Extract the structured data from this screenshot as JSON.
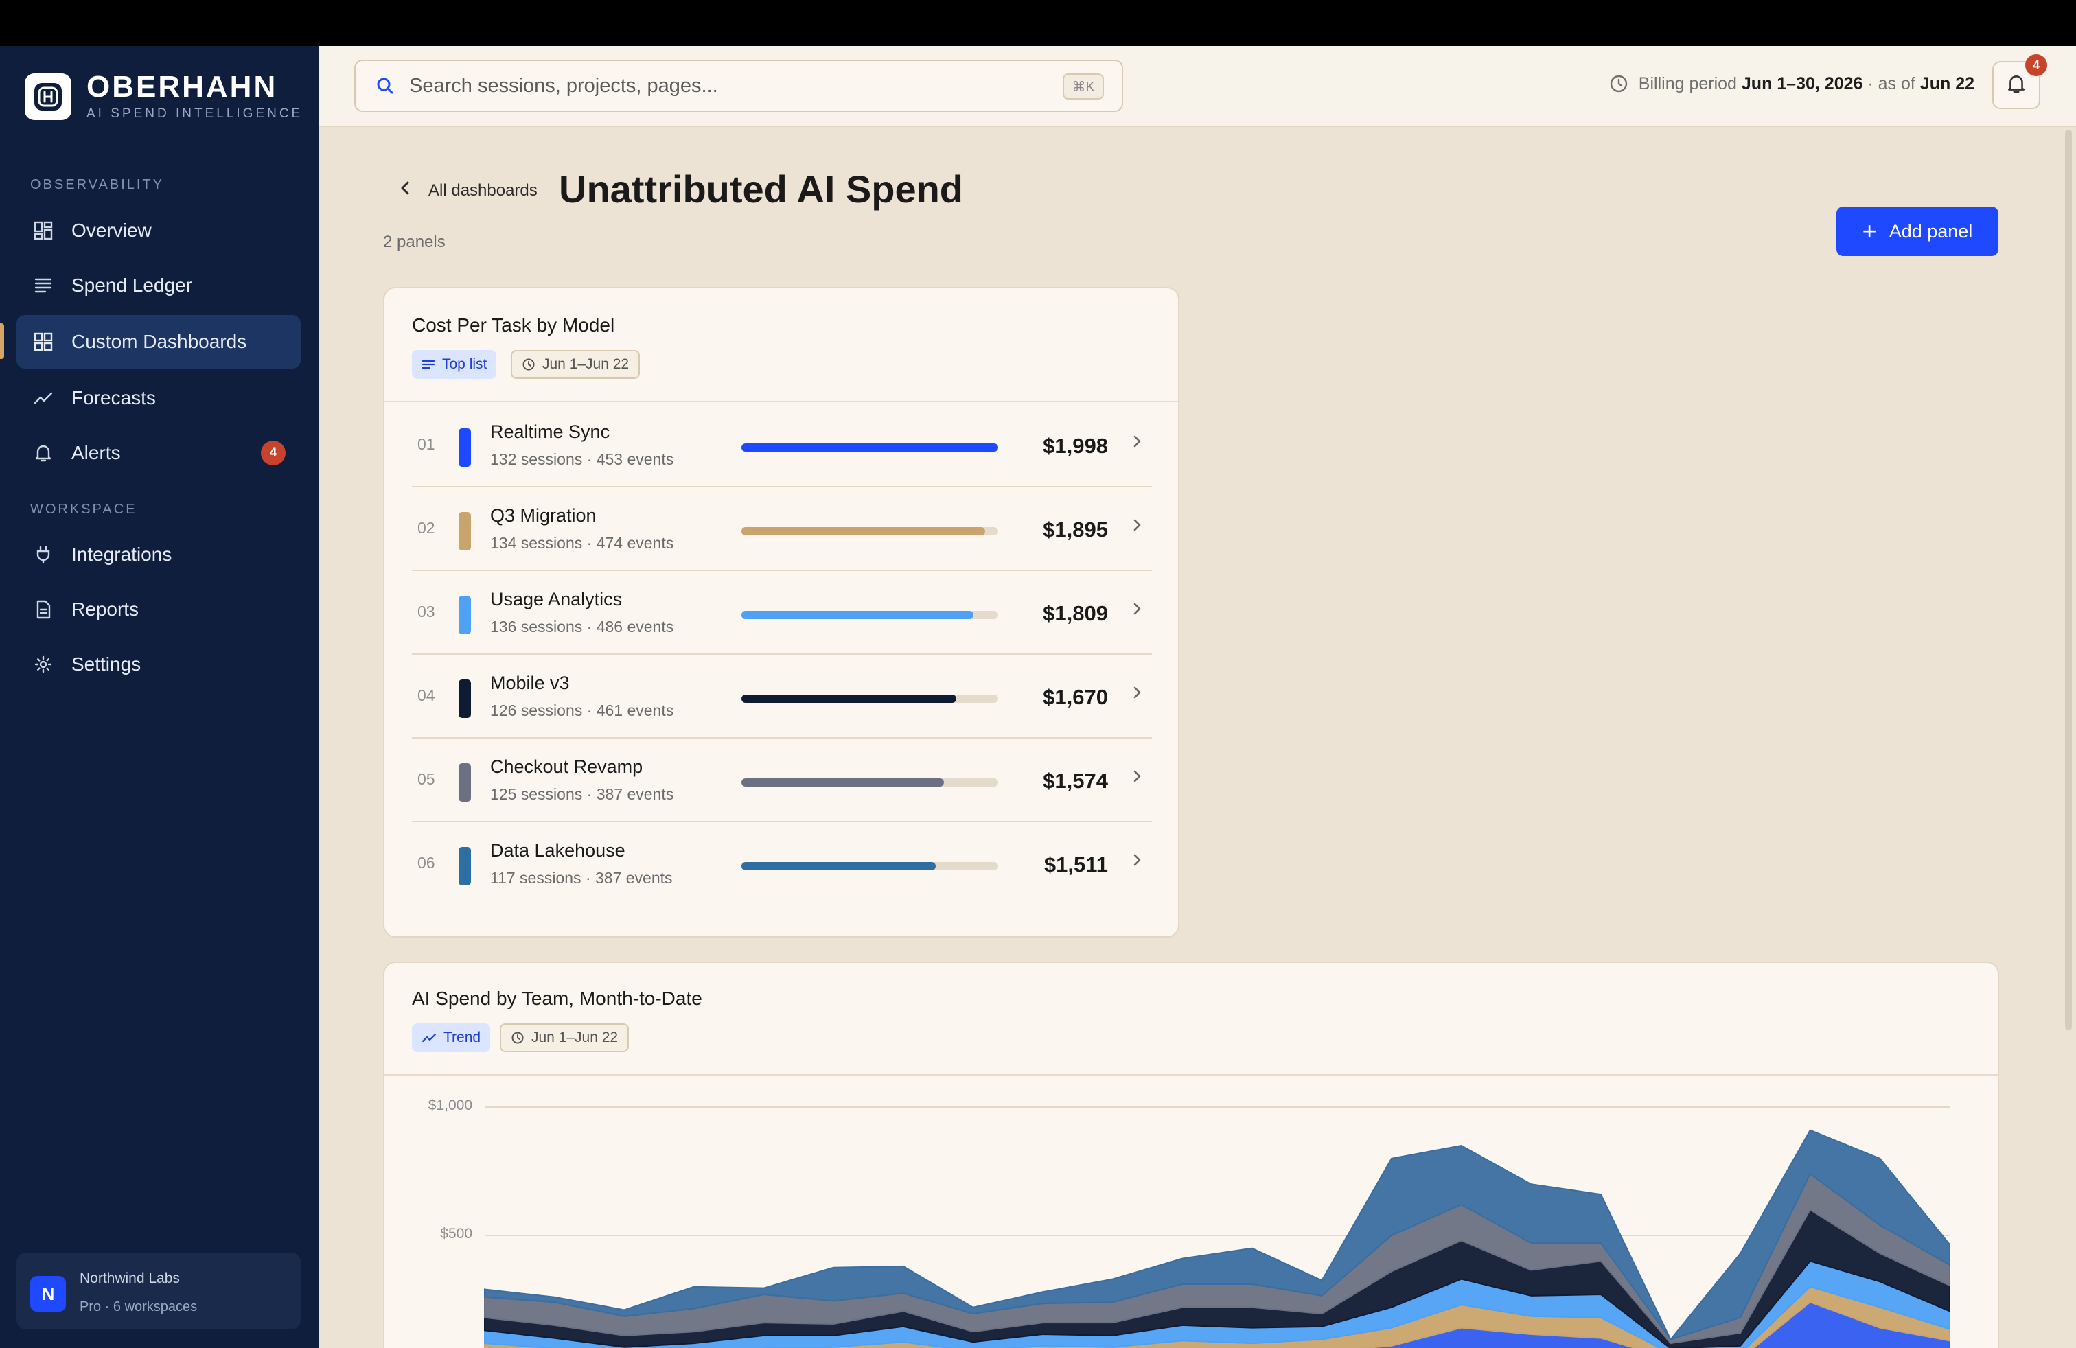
{
  "brand": {
    "name": "OBERHAHN",
    "subtitle": "AI SPEND INTELLIGENCE"
  },
  "sidebar": {
    "sections": [
      {
        "label": "OBSERVABILITY"
      },
      {
        "label": "WORKSPACE"
      }
    ],
    "items": [
      {
        "label": "Overview",
        "icon": "grid-icon"
      },
      {
        "label": "Spend Ledger",
        "icon": "ledger-icon"
      },
      {
        "label": "Custom Dashboards",
        "icon": "dashboard-icon",
        "active": true
      },
      {
        "label": "Forecasts",
        "icon": "trend-icon"
      },
      {
        "label": "Alerts",
        "icon": "bell-icon",
        "badge": "4"
      },
      {
        "label": "Integrations",
        "icon": "plug-icon"
      },
      {
        "label": "Reports",
        "icon": "document-icon"
      },
      {
        "label": "Settings",
        "icon": "gear-icon"
      }
    ],
    "workspace": {
      "avatar": "N",
      "name": "Northwind Labs",
      "plan": "Pro · 6 workspaces"
    }
  },
  "header": {
    "search_placeholder": "Search sessions, projects, pages...",
    "shortcut": "⌘K",
    "billing_label": "Billing period",
    "billing_range": "Jun 1–30, 2026",
    "billing_asof_label": "· as of",
    "billing_asof": "Jun 22",
    "notification_count": "4"
  },
  "page": {
    "back_label": "All dashboards",
    "title": "Unattributed AI Spend",
    "panel_count": "2 panels",
    "add_panel_label": "Add panel"
  },
  "panel1": {
    "title": "Cost Per Task by Model",
    "type_chip": "Top list",
    "date_chip": "Jun 1–Jun 22",
    "rows": [
      {
        "rank": "01",
        "name": "Realtime Sync",
        "meta": "132 sessions · 453 events",
        "value": "$1,998",
        "share": 1.0,
        "color": "#1f49ff"
      },
      {
        "rank": "02",
        "name": "Q3 Migration",
        "meta": "134 sessions · 474 events",
        "value": "$1,895",
        "share": 0.948,
        "color": "#c9a46c"
      },
      {
        "rank": "03",
        "name": "Usage Analytics",
        "meta": "136 sessions · 486 events",
        "value": "$1,809",
        "share": 0.905,
        "color": "#4ea1f5"
      },
      {
        "rank": "04",
        "name": "Mobile v3",
        "meta": "126 sessions · 461 events",
        "value": "$1,670",
        "share": 0.836,
        "color": "#0f1a33"
      },
      {
        "rank": "05",
        "name": "Checkout Revamp",
        "meta": "125 sessions · 387 events",
        "value": "$1,574",
        "share": 0.788,
        "color": "#6b7182"
      },
      {
        "rank": "06",
        "name": "Data Lakehouse",
        "meta": "117 sessions · 387 events",
        "value": "$1,511",
        "share": 0.756,
        "color": "#2f6ea3"
      }
    ]
  },
  "panel2": {
    "title": "AI Spend by Team, Month-to-Date",
    "type_chip": "Trend",
    "date_chip": "Jun 1–Jun 22"
  },
  "chart_data": {
    "type": "area",
    "title": "AI Spend by Team, Month-to-Date",
    "y_tick_labels": [
      "$1,000",
      "$500"
    ],
    "ylim": [
      0,
      1000
    ],
    "x": [
      1,
      2,
      3,
      4,
      5,
      6,
      7,
      8,
      9,
      10,
      11,
      12,
      13,
      14,
      15,
      16,
      17,
      18,
      19,
      20,
      21,
      22
    ],
    "stacked": true,
    "series": [
      {
        "color": "#2f5bf0",
        "values": [
          40,
          20,
          0,
          5,
          15,
          20,
          35,
          15,
          30,
          25,
          40,
          30,
          45,
          70,
          140,
          115,
          100,
          20,
          20,
          240,
          140,
          90
        ]
      },
      {
        "color": "#c9a46c",
        "values": [
          40,
          40,
          30,
          35,
          45,
          45,
          50,
          35,
          40,
          40,
          50,
          50,
          50,
          70,
          90,
          70,
          80,
          20,
          20,
          60,
          80,
          45
        ]
      },
      {
        "color": "#4ea1f5",
        "values": [
          50,
          40,
          35,
          40,
          50,
          45,
          60,
          35,
          45,
          45,
          60,
          60,
          50,
          80,
          100,
          80,
          90,
          20,
          30,
          100,
          100,
          70
        ]
      },
      {
        "color": "#0f1a33",
        "values": [
          50,
          50,
          45,
          45,
          50,
          45,
          60,
          40,
          45,
          50,
          70,
          80,
          50,
          140,
          150,
          100,
          130,
          20,
          50,
          200,
          110,
          100
        ]
      },
      {
        "color": "#6b7182",
        "values": [
          80,
          90,
          75,
          90,
          110,
          90,
          70,
          70,
          75,
          80,
          90,
          90,
          70,
          140,
          140,
          105,
          70,
          15,
          60,
          140,
          110,
          80
        ]
      },
      {
        "color": "#3a6ea0",
        "values": [
          30,
          20,
          25,
          85,
          25,
          130,
          105,
          25,
          45,
          90,
          100,
          140,
          60,
          300,
          230,
          230,
          190,
          0,
          250,
          170,
          260,
          80
        ]
      }
    ]
  }
}
